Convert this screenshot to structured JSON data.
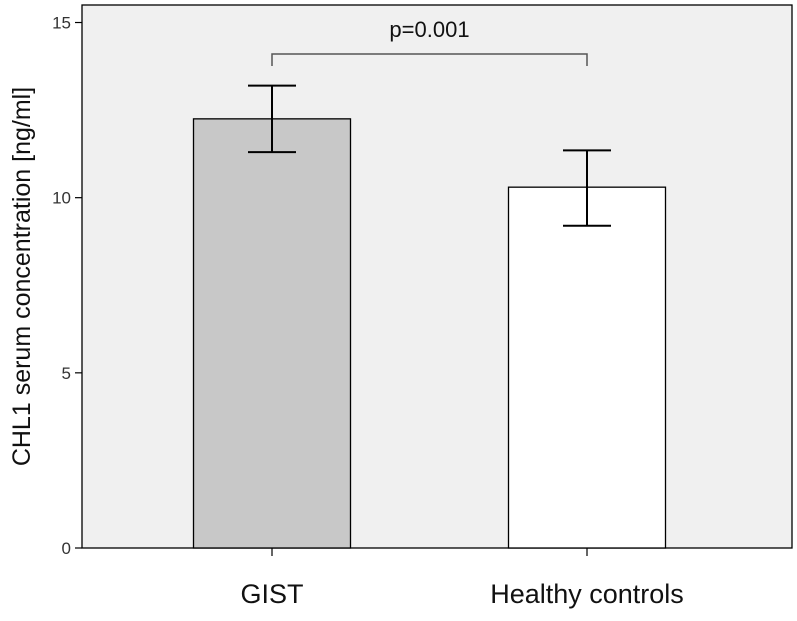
{
  "chart_data": {
    "type": "bar",
    "title": "",
    "xlabel": "",
    "ylabel": "CHL1 serum concentration [ng/ml]",
    "ylim": [
      0,
      15.5
    ],
    "yticks": [
      0,
      5,
      10,
      15
    ],
    "ytick_labels": [
      "0",
      "5",
      "10",
      "15"
    ],
    "categories": [
      "GIST",
      "Healthy controls"
    ],
    "values": [
      12.25,
      10.3
    ],
    "error_low": [
      11.3,
      9.2
    ],
    "error_high": [
      13.2,
      11.35
    ],
    "bar_colors": [
      "#c8c8c8",
      "#ffffff"
    ],
    "grid": false,
    "annotation": {
      "text": "p=0.001",
      "between": [
        "GIST",
        "Healthy controls"
      ]
    }
  }
}
